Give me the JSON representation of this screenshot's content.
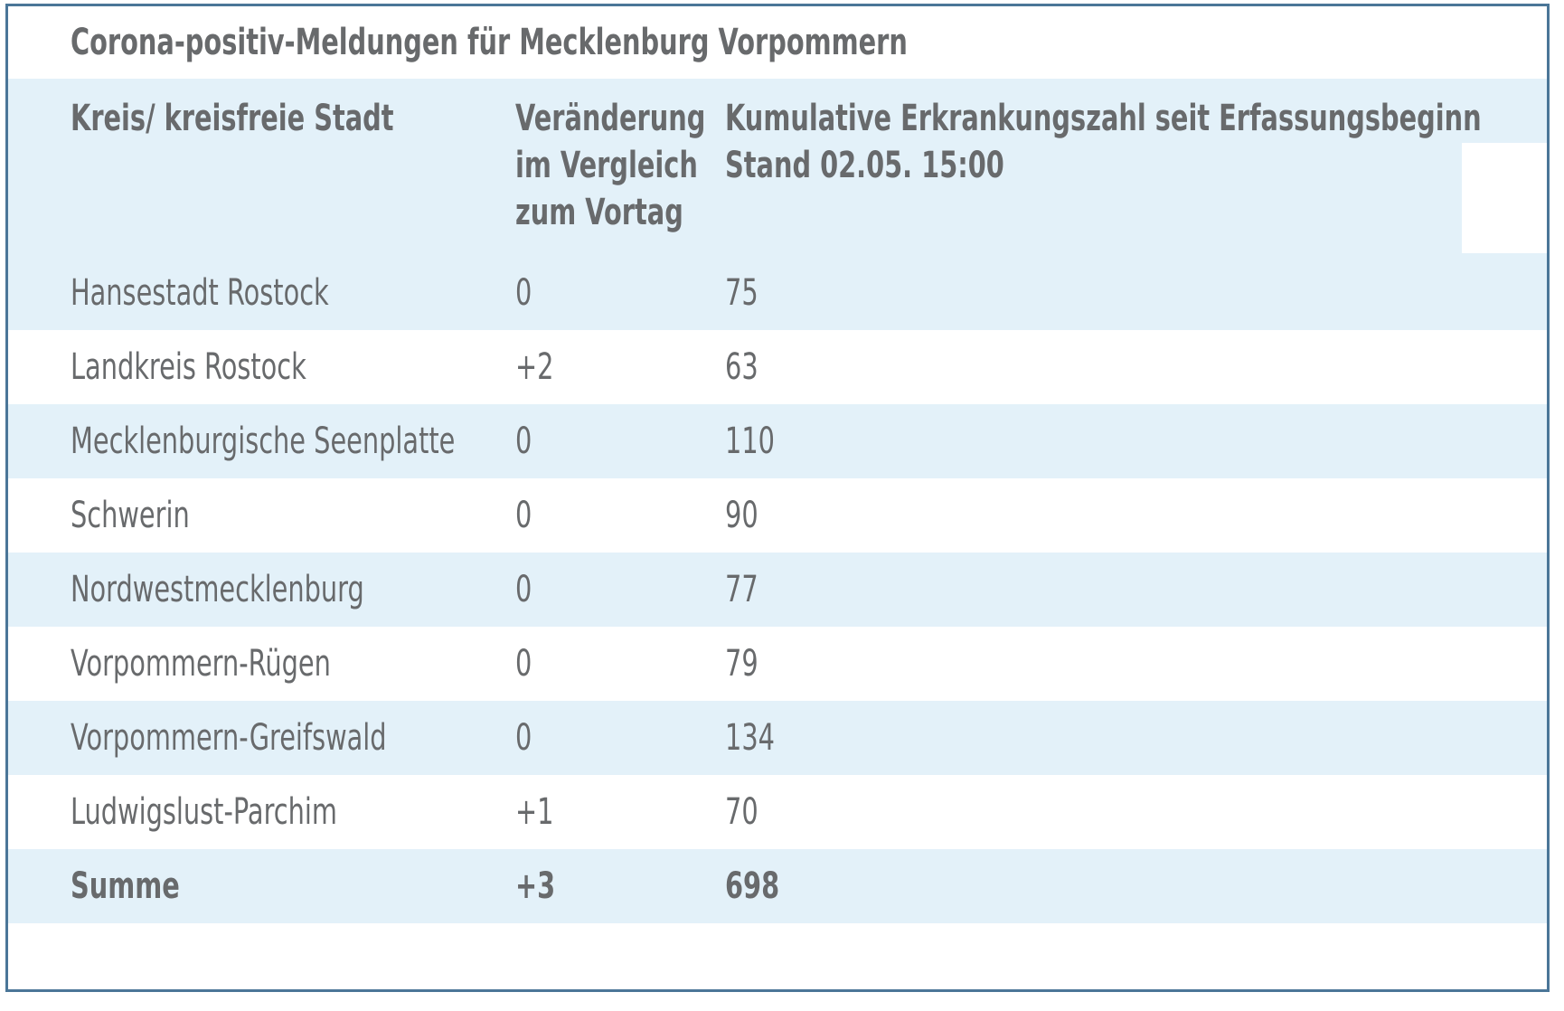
{
  "title": "Corona-positiv-Meldungen für Mecklenburg Vorpommern",
  "header": {
    "col1": {
      "lines": [
        "Kreis/ kreisfreie Stadt"
      ]
    },
    "col2": {
      "lines": [
        "Veränderung",
        "im Vergleich",
        "zum Vortag"
      ]
    },
    "col3": {
      "lines": [
        "Kumulative Erkrankungszahl seit Erfassungsbeginn",
        "Stand 02.05. 15:00"
      ]
    }
  },
  "rows": [
    {
      "kreis": "Hansestadt Rostock",
      "veraenderung": "0",
      "kumulativ": "75",
      "bold": false
    },
    {
      "kreis": "Landkreis Rostock",
      "veraenderung": "+2",
      "kumulativ": "63",
      "bold": false
    },
    {
      "kreis": "Mecklenburgische Seenplatte",
      "veraenderung": "0",
      "kumulativ": "110",
      "bold": false
    },
    {
      "kreis": "Schwerin",
      "veraenderung": "0",
      "kumulativ": "90",
      "bold": false
    },
    {
      "kreis": "Nordwestmecklenburg",
      "veraenderung": "0",
      "kumulativ": "77",
      "bold": false
    },
    {
      "kreis": "Vorpommern-Rügen",
      "veraenderung": "0",
      "kumulativ": "79",
      "bold": false
    },
    {
      "kreis": "Vorpommern-Greifswald",
      "veraenderung": "0",
      "kumulativ": "134",
      "bold": false
    },
    {
      "kreis": "Ludwigslust-Parchim",
      "veraenderung": "+1",
      "kumulativ": "70",
      "bold": false
    },
    {
      "kreis": "Summe",
      "veraenderung": "+3",
      "kumulativ": "698",
      "bold": true
    }
  ],
  "colors": {
    "row_highlight": "#e3f1f9",
    "border": "#4b7698",
    "text": "#686a6c",
    "background": "#ffffff"
  },
  "chart_data": {
    "type": "table",
    "title": "Corona-positiv-Meldungen für Mecklenburg Vorpommern",
    "columns": [
      "Kreis/ kreisfreie Stadt",
      "Veränderung im Vergleich zum Vortag",
      "Kumulative Erkrankungszahl seit Erfassungsbeginn Stand 02.05. 15:00"
    ],
    "rows": [
      [
        "Hansestadt Rostock",
        0,
        75
      ],
      [
        "Landkreis Rostock",
        2,
        63
      ],
      [
        "Mecklenburgische Seenplatte",
        0,
        110
      ],
      [
        "Schwerin",
        0,
        90
      ],
      [
        "Nordwestmecklenburg",
        0,
        77
      ],
      [
        "Vorpommern-Rügen",
        0,
        79
      ],
      [
        "Vorpommern-Greifswald",
        0,
        134
      ],
      [
        "Ludwigslust-Parchim",
        1,
        70
      ],
      [
        "Summe",
        3,
        698
      ]
    ],
    "notes": "Veränderung values rendered with leading + when positive: 0, +2, 0, 0, 0, 0, 0, +1, +3"
  }
}
